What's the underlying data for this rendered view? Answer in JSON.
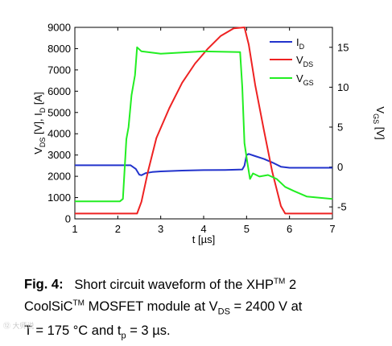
{
  "chart_data": {
    "type": "line",
    "title": "",
    "xlabel": "t [µs]",
    "ylabel_left": "V_DS [V], I_D [A]",
    "ylabel_right": "V_GS [V]",
    "xlim": [
      1,
      7
    ],
    "ylim_left": [
      0,
      9000
    ],
    "ylim_right": [
      -6.5,
      17.5
    ],
    "x_ticks": [
      1,
      2,
      3,
      4,
      5,
      6,
      7
    ],
    "y_left_ticks": [
      0,
      1000,
      2000,
      3000,
      4000,
      5000,
      6000,
      7000,
      8000,
      9000
    ],
    "y_right_ticks": [
      -5,
      0,
      5,
      10,
      15
    ],
    "legend_position": "top-right",
    "grid": false,
    "series": [
      {
        "name": "I_D",
        "axis": "left",
        "color": "#2233cc",
        "x": [
          1.0,
          2.3,
          2.42,
          2.5,
          2.55,
          2.65,
          2.8,
          3.0,
          3.5,
          4.0,
          4.5,
          4.9,
          4.95,
          5.0,
          5.05,
          5.2,
          5.4,
          5.6,
          5.8,
          6.0,
          6.5,
          7.0
        ],
        "y": [
          2520,
          2520,
          2350,
          2080,
          2050,
          2150,
          2200,
          2230,
          2270,
          2290,
          2300,
          2320,
          2500,
          3000,
          3050,
          2950,
          2820,
          2650,
          2450,
          2400,
          2400,
          2400
        ]
      },
      {
        "name": "V_DS",
        "axis": "left",
        "color": "#ee2222",
        "x": [
          1.0,
          2.45,
          2.55,
          2.7,
          2.9,
          3.2,
          3.5,
          3.8,
          4.1,
          4.4,
          4.7,
          4.95,
          5.05,
          5.2,
          5.4,
          5.6,
          5.8,
          5.9,
          6.0,
          7.0
        ],
        "y": [
          250,
          250,
          800,
          2200,
          3800,
          5200,
          6400,
          7300,
          8000,
          8600,
          8950,
          9000,
          8200,
          6300,
          4200,
          2200,
          600,
          250,
          250,
          250
        ]
      },
      {
        "name": "V_GS",
        "axis": "right",
        "color": "#22ee22",
        "x": [
          1.0,
          2.05,
          2.12,
          2.2,
          2.25,
          2.32,
          2.4,
          2.45,
          2.55,
          3.0,
          4.0,
          4.85,
          4.9,
          4.95,
          5.02,
          5.08,
          5.15,
          5.3,
          5.5,
          5.7,
          5.9,
          6.1,
          6.4,
          7.0
        ],
        "y": [
          -4.3,
          -4.3,
          -4.0,
          3.5,
          5.0,
          9.0,
          11.5,
          15.0,
          14.5,
          14.2,
          14.5,
          14.4,
          10.0,
          3.0,
          0.5,
          -1.5,
          -0.8,
          -1.2,
          -1.0,
          -1.5,
          -2.5,
          -3.0,
          -3.7,
          -4.0
        ]
      }
    ],
    "legend": [
      {
        "name": "I",
        "sub": "D",
        "color": "#2233cc"
      },
      {
        "name": "V",
        "sub": "DS",
        "color": "#ee2222"
      },
      {
        "name": "V",
        "sub": "GS",
        "color": "#22ee22"
      }
    ]
  },
  "caption": {
    "label": "Fig. 4:",
    "line1_pre": "Short circuit waveform of the XHP",
    "tm1": "TM",
    "line1_post": " 2",
    "line2_pre": "CoolSiC",
    "tm2": "TM",
    "line2_mid": " MOSFET module at V",
    "vds_sub": "DS",
    "line2_post": " = 2400 V at",
    "line3_pre": "T = 175 °C and t",
    "tp_sub": "p",
    "line3_post": " = 3 µs."
  },
  "watermark": "⑫ 大师说"
}
